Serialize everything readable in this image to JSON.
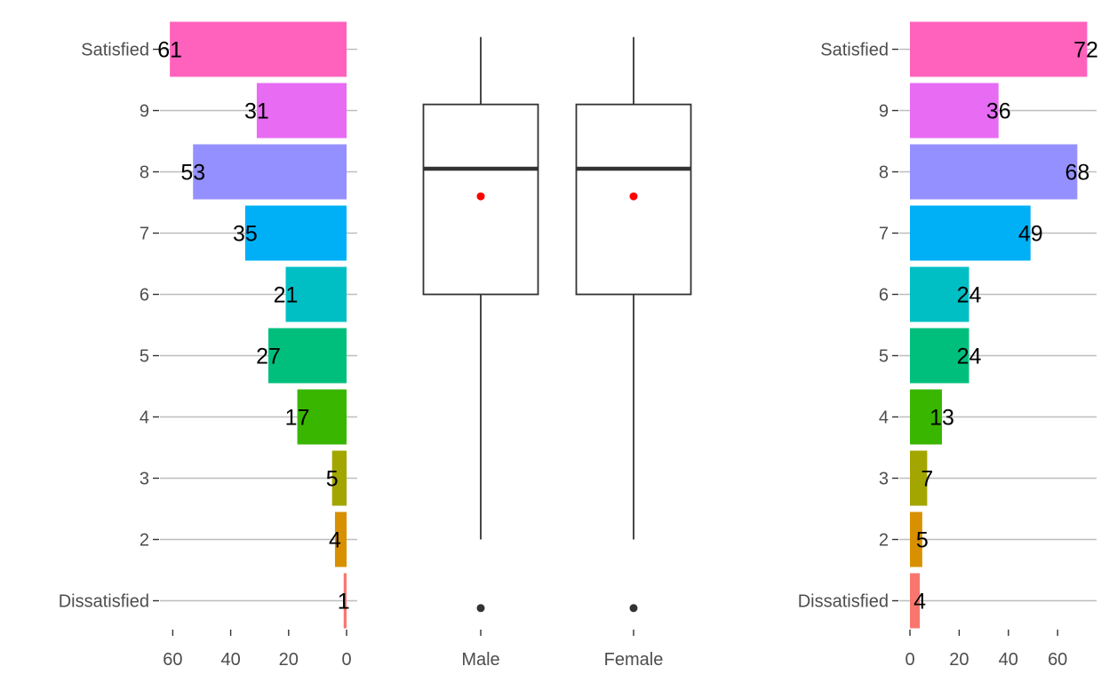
{
  "chart_data": [
    {
      "type": "bar",
      "orientation": "horizontal",
      "direction": "reversed",
      "panel": "left",
      "categories": [
        "Dissatisfied",
        "2",
        "3",
        "4",
        "5",
        "6",
        "7",
        "8",
        "9",
        "Satisfied"
      ],
      "values": [
        1,
        4,
        5,
        17,
        27,
        21,
        35,
        53,
        31,
        61
      ],
      "value_labels": [
        "1",
        "4",
        "5",
        "17",
        "27",
        "21",
        "35",
        "53",
        "31",
        "61"
      ],
      "colors": [
        "#F8766D",
        "#D89000",
        "#A3A500",
        "#39B600",
        "#00BF7D",
        "#00BFC4",
        "#00B0F6",
        "#9590FF",
        "#E76BF3",
        "#FF62BC"
      ],
      "xticks": [
        60,
        40,
        20,
        0
      ],
      "xtick_labels": [
        "60",
        "40",
        "20",
        "0"
      ],
      "xlim": [
        0,
        61
      ],
      "grid": true
    },
    {
      "type": "boxplot",
      "panel": "middle",
      "categories": [
        "Male",
        "Female"
      ],
      "y_levels": [
        "Dissatisfied",
        "2",
        "3",
        "4",
        "5",
        "6",
        "7",
        "8",
        "9",
        "Satisfied"
      ],
      "boxes": [
        {
          "name": "Male",
          "whisker_low": 2,
          "q1": 6,
          "median": 8.05,
          "q3": 9.1,
          "whisker_high": 10.2,
          "mean": 7.6,
          "outliers": [
            0.88
          ]
        },
        {
          "name": "Female",
          "whisker_low": 2,
          "q1": 6,
          "median": 8.05,
          "q3": 9.1,
          "whisker_high": 10.2,
          "mean": 7.6,
          "outliers": [
            0.88
          ]
        }
      ],
      "mean_color": "#ff0000",
      "grid": false
    },
    {
      "type": "bar",
      "orientation": "horizontal",
      "panel": "right",
      "categories": [
        "Dissatisfied",
        "2",
        "3",
        "4",
        "5",
        "6",
        "7",
        "8",
        "9",
        "Satisfied"
      ],
      "values": [
        4,
        5,
        7,
        13,
        24,
        24,
        49,
        68,
        36,
        72
      ],
      "value_labels": [
        "4",
        "5",
        "7",
        "13",
        "24",
        "24",
        "49",
        "68",
        "36",
        "72"
      ],
      "colors": [
        "#F8766D",
        "#D89000",
        "#A3A500",
        "#39B600",
        "#00BF7D",
        "#00BFC4",
        "#00B0F6",
        "#9590FF",
        "#E76BF3",
        "#FF62BC"
      ],
      "xticks": [
        0,
        20,
        40,
        60
      ],
      "xtick_labels": [
        "0",
        "20",
        "40",
        "60"
      ],
      "xlim": [
        0,
        72
      ],
      "grid": true
    }
  ]
}
